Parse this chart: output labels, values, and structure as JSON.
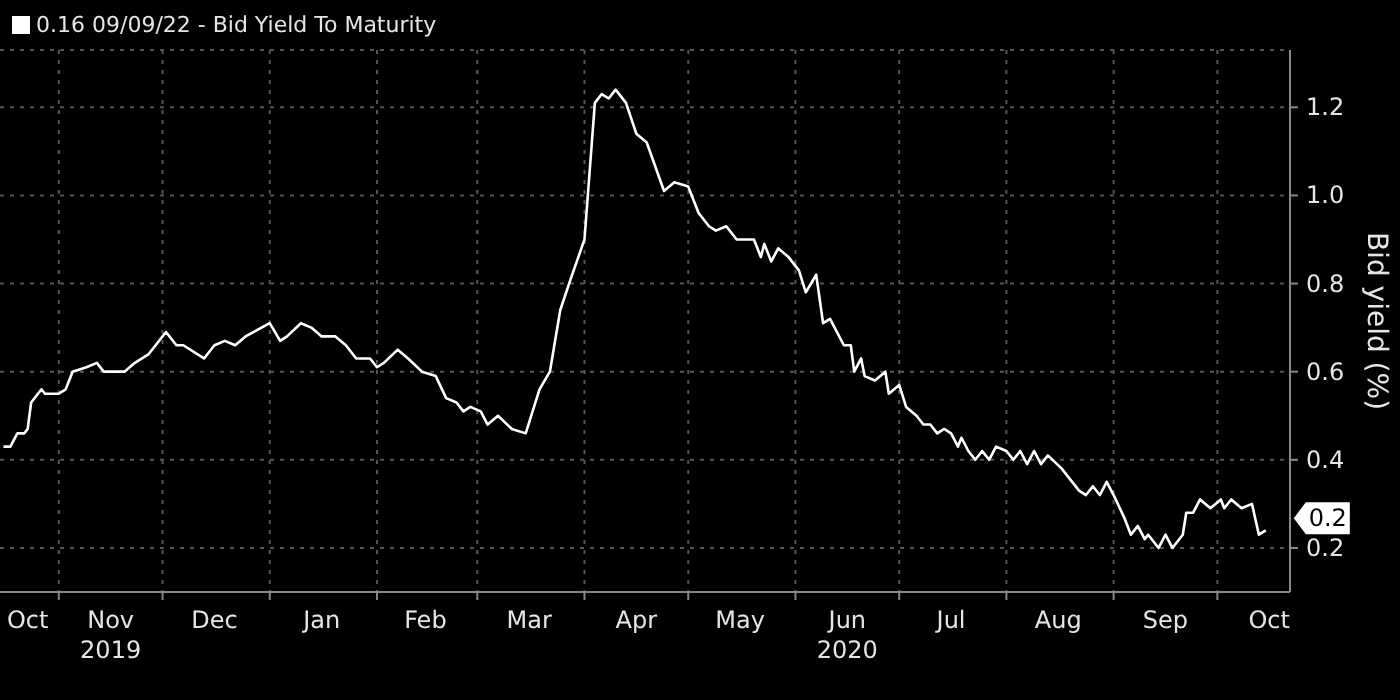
{
  "chart_data": {
    "type": "line",
    "ylabel": "Bid yield (%)",
    "legend": "top left",
    "grid": true,
    "xlim": [
      "2019-10-15",
      "2020-10-22"
    ],
    "xticks": [
      {
        "value": "2019-10-23",
        "label": "Oct"
      },
      {
        "value": "2019-11-01",
        "label": null
      },
      {
        "value": "2019-11-16",
        "label": "Nov\n2019"
      },
      {
        "value": "2019-12-01",
        "label": null
      },
      {
        "value": "2019-12-16",
        "label": "Dec"
      },
      {
        "value": "2020-01-01",
        "label": null
      },
      {
        "value": "2020-01-16",
        "label": "Jan"
      },
      {
        "value": "2020-02-01",
        "label": null
      },
      {
        "value": "2020-02-15",
        "label": "Feb"
      },
      {
        "value": "2020-03-01",
        "label": null
      },
      {
        "value": "2020-03-16",
        "label": "Mar"
      },
      {
        "value": "2020-04-01",
        "label": null
      },
      {
        "value": "2020-04-16",
        "label": "Apr"
      },
      {
        "value": "2020-05-01",
        "label": null
      },
      {
        "value": "2020-05-16",
        "label": "May"
      },
      {
        "value": "2020-06-01",
        "label": null
      },
      {
        "value": "2020-06-16",
        "label": "Jun\n2020"
      },
      {
        "value": "2020-07-01",
        "label": null
      },
      {
        "value": "2020-07-16",
        "label": "Jul"
      },
      {
        "value": "2020-08-01",
        "label": null
      },
      {
        "value": "2020-08-16",
        "label": "Aug"
      },
      {
        "value": "2020-09-01",
        "label": null
      },
      {
        "value": "2020-09-16",
        "label": "Sep"
      },
      {
        "value": "2020-10-01",
        "label": null
      },
      {
        "value": "2020-10-16",
        "label": "Oct"
      }
    ],
    "ylim": [
      0.1,
      1.33
    ],
    "yticks": [
      0.2,
      0.4,
      0.6,
      0.8,
      {
        "value": 1,
        "label": "1.0"
      },
      1.2
    ],
    "annotations": [
      {
        "text": "0.2",
        "x": "2020-10-15",
        "y": 0.24
      }
    ],
    "x": [
      "2019-10-16",
      "2019-10-18",
      "2019-10-20",
      "2019-10-22",
      "2019-10-23",
      "2019-10-24",
      "2019-10-27",
      "2019-10-28",
      "2019-11-01",
      "2019-11-03",
      "2019-11-05",
      "2019-11-09",
      "2019-11-12",
      "2019-11-14",
      "2019-11-16",
      "2019-11-20",
      "2019-11-23",
      "2019-11-27",
      "2019-11-29",
      "2019-12-02",
      "2019-12-05",
      "2019-12-07",
      "2019-12-13",
      "2019-12-16",
      "2019-12-19",
      "2019-12-22",
      "2019-12-25",
      "2020-01-01",
      "2020-01-04",
      "2020-01-06",
      "2020-01-10",
      "2020-01-13",
      "2020-01-16",
      "2020-01-20",
      "2020-01-23",
      "2020-01-26",
      "2020-01-30",
      "2020-02-01",
      "2020-02-03",
      "2020-02-07",
      "2020-02-10",
      "2020-02-14",
      "2020-02-18",
      "2020-02-21",
      "2020-02-24",
      "2020-02-26",
      "2020-02-28",
      "2020-03-02",
      "2020-03-04",
      "2020-03-07",
      "2020-03-11",
      "2020-03-15",
      "2020-03-19",
      "2020-03-22",
      "2020-03-25",
      "2020-03-28",
      "2020-04-01",
      "2020-04-04",
      "2020-04-06",
      "2020-04-08",
      "2020-04-10",
      "2020-04-13",
      "2020-04-16",
      "2020-04-19",
      "2020-04-24",
      "2020-04-27",
      "2020-05-01",
      "2020-05-04",
      "2020-05-07",
      "2020-05-09",
      "2020-05-12",
      "2020-05-15",
      "2020-05-18",
      "2020-05-20",
      "2020-05-22",
      "2020-05-23",
      "2020-05-25",
      "2020-05-27",
      "2020-05-30",
      "2020-06-02",
      "2020-06-04",
      "2020-06-07",
      "2020-06-09",
      "2020-06-11",
      "2020-06-15",
      "2020-06-17",
      "2020-06-18",
      "2020-06-20",
      "2020-06-21",
      "2020-06-24",
      "2020-06-27",
      "2020-06-28",
      "2020-07-01",
      "2020-07-03",
      "2020-07-06",
      "2020-07-08",
      "2020-07-10",
      "2020-07-12",
      "2020-07-14",
      "2020-07-16",
      "2020-07-18",
      "2020-07-19",
      "2020-07-21",
      "2020-07-23",
      "2020-07-25",
      "2020-07-27",
      "2020-07-29",
      "2020-08-01",
      "2020-08-03",
      "2020-08-05",
      "2020-08-07",
      "2020-08-09",
      "2020-08-11",
      "2020-08-13",
      "2020-08-17",
      "2020-08-20",
      "2020-08-22",
      "2020-08-24",
      "2020-08-26",
      "2020-08-28",
      "2020-08-30",
      "2020-09-01",
      "2020-09-04",
      "2020-09-06",
      "2020-09-08",
      "2020-09-10",
      "2020-09-11",
      "2020-09-14",
      "2020-09-16",
      "2020-09-18",
      "2020-09-21",
      "2020-09-22",
      "2020-09-24",
      "2020-09-26",
      "2020-09-29",
      "2020-10-02",
      "2020-10-03",
      "2020-10-05",
      "2020-10-08",
      "2020-10-11",
      "2020-10-13",
      "2020-10-15"
    ],
    "series": [
      {
        "name": "0.16 09/09/22 - Bid Yield To Maturity",
        "color": "#ffffff",
        "values": [
          0.43,
          0.43,
          0.46,
          0.46,
          0.47,
          0.53,
          0.56,
          0.55,
          0.55,
          0.56,
          0.6,
          0.61,
          0.62,
          0.6,
          0.6,
          0.6,
          0.62,
          0.64,
          0.66,
          0.69,
          0.66,
          0.66,
          0.63,
          0.66,
          0.67,
          0.66,
          0.68,
          0.71,
          0.67,
          0.68,
          0.71,
          0.7,
          0.68,
          0.68,
          0.66,
          0.63,
          0.63,
          0.61,
          0.62,
          0.65,
          0.63,
          0.6,
          0.59,
          0.54,
          0.53,
          0.51,
          0.52,
          0.51,
          0.48,
          0.5,
          0.47,
          0.46,
          0.56,
          0.6,
          0.74,
          0.81,
          0.9,
          1.21,
          1.23,
          1.22,
          1.24,
          1.21,
          1.14,
          1.12,
          1.01,
          1.03,
          1.02,
          0.96,
          0.93,
          0.92,
          0.93,
          0.9,
          0.9,
          0.9,
          0.86,
          0.89,
          0.85,
          0.88,
          0.86,
          0.83,
          0.78,
          0.82,
          0.71,
          0.72,
          0.66,
          0.66,
          0.6,
          0.63,
          0.59,
          0.58,
          0.6,
          0.55,
          0.57,
          0.52,
          0.5,
          0.48,
          0.48,
          0.46,
          0.47,
          0.46,
          0.43,
          0.45,
          0.42,
          0.4,
          0.42,
          0.4,
          0.43,
          0.42,
          0.4,
          0.42,
          0.39,
          0.42,
          0.39,
          0.41,
          0.38,
          0.35,
          0.33,
          0.32,
          0.34,
          0.32,
          0.35,
          0.32,
          0.27,
          0.23,
          0.25,
          0.22,
          0.23,
          0.2,
          0.23,
          0.2,
          0.23,
          0.28,
          0.28,
          0.31,
          0.29,
          0.31,
          0.29,
          0.31,
          0.29,
          0.3,
          0.23,
          0.24
        ]
      }
    ]
  }
}
